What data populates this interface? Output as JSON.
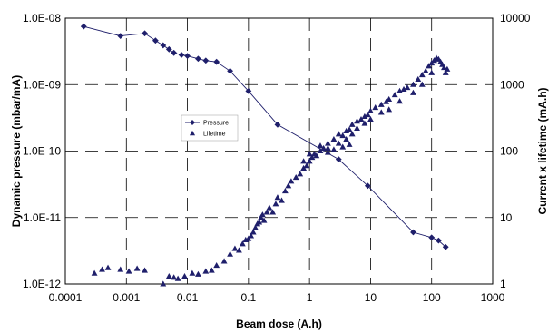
{
  "chart_data": {
    "type": "scatter",
    "xlabel": "Beam dose (A.h)",
    "ylabel_left": "Dynamic pressure (mbar/mA)",
    "ylabel_right": "Current x lifetime (mA.h)",
    "x_scale": "log",
    "y_left_scale": "log",
    "y_right_scale": "log",
    "xlim": [
      0.0001,
      1000
    ],
    "ylim_left": [
      1e-12,
      1e-08
    ],
    "ylim_right": [
      1,
      10000
    ],
    "x_ticks": [
      "0.0001",
      "0.001",
      "0.01",
      "0.1",
      "1",
      "10",
      "100",
      "1000"
    ],
    "y_left_ticks": [
      "1.0E-12",
      "1.0E-11",
      "1.0E-10",
      "1.0E-09",
      "1.0E-08"
    ],
    "y_right_ticks": [
      "1",
      "10",
      "100",
      "1000",
      "10000"
    ],
    "grid": "dashed",
    "legend_position": "left-center",
    "series": [
      {
        "name": "Pressure",
        "axis": "left",
        "marker": "diamond",
        "connected": true,
        "color": "#1f1f6b",
        "points": [
          [
            0.0002,
            7.5e-09
          ],
          [
            0.0008,
            5.4e-09
          ],
          [
            0.002,
            5.9e-09
          ],
          [
            0.003,
            4.6e-09
          ],
          [
            0.004,
            3.9e-09
          ],
          [
            0.005,
            3.4e-09
          ],
          [
            0.006,
            3e-09
          ],
          [
            0.008,
            2.8e-09
          ],
          [
            0.01,
            2.7e-09
          ],
          [
            0.015,
            2.45e-09
          ],
          [
            0.02,
            2.3e-09
          ],
          [
            0.03,
            2.2e-09
          ],
          [
            0.05,
            1.6e-09
          ],
          [
            0.1,
            8e-10
          ],
          [
            0.3,
            2.5e-10
          ],
          [
            3,
            7.5e-11
          ],
          [
            9,
            3e-11
          ],
          [
            50,
            6e-12
          ],
          [
            100,
            5e-12
          ],
          [
            130,
            4.5e-12
          ],
          [
            170,
            3.6e-12
          ]
        ]
      },
      {
        "name": "Lifetime",
        "axis": "right",
        "marker": "triangle",
        "connected": false,
        "color": "#1f1f6b",
        "points": [
          [
            0.0003,
            1.45
          ],
          [
            0.0004,
            1.65
          ],
          [
            0.0005,
            1.75
          ],
          [
            0.0008,
            1.65
          ],
          [
            0.0011,
            1.55
          ],
          [
            0.0015,
            1.7
          ],
          [
            0.002,
            1.6
          ],
          [
            0.004,
            1.0
          ],
          [
            0.005,
            1.3
          ],
          [
            0.006,
            1.25
          ],
          [
            0.007,
            1.2
          ],
          [
            0.009,
            1.3
          ],
          [
            0.012,
            1.45
          ],
          [
            0.015,
            1.4
          ],
          [
            0.02,
            1.55
          ],
          [
            0.025,
            1.6
          ],
          [
            0.03,
            1.9
          ],
          [
            0.04,
            2.2
          ],
          [
            0.05,
            2.8
          ],
          [
            0.06,
            3.4
          ],
          [
            0.07,
            3.2
          ],
          [
            0.08,
            4.0
          ],
          [
            0.09,
            4.6
          ],
          [
            0.1,
            4.8
          ],
          [
            0.11,
            5.3
          ],
          [
            0.12,
            6.0
          ],
          [
            0.13,
            7.0
          ],
          [
            0.14,
            8.0
          ],
          [
            0.15,
            8.5
          ],
          [
            0.16,
            10.0
          ],
          [
            0.17,
            11.0
          ],
          [
            0.18,
            9.0
          ],
          [
            0.2,
            12.0
          ],
          [
            0.22,
            14.0
          ],
          [
            0.25,
            12.0
          ],
          [
            0.28,
            16.0
          ],
          [
            0.3,
            20.0
          ],
          [
            0.35,
            18.0
          ],
          [
            0.4,
            25.0
          ],
          [
            0.45,
            30.0
          ],
          [
            0.5,
            35.0
          ],
          [
            0.6,
            40.0
          ],
          [
            0.7,
            45.0
          ],
          [
            0.8,
            55.0
          ],
          [
            0.9,
            60.0
          ],
          [
            1.0,
            70.0
          ],
          [
            1.1,
            80.0
          ],
          [
            1.2,
            90.0
          ],
          [
            1.3,
            85.0
          ],
          [
            1.5,
            100.0
          ],
          [
            1.7,
            110.0
          ],
          [
            2.0,
            130.0
          ],
          [
            2.5,
            150.0
          ],
          [
            3.0,
            180.0
          ],
          [
            3.5,
            170.0
          ],
          [
            4.0,
            200.0
          ],
          [
            4.5,
            210.0
          ],
          [
            5.0,
            250.0
          ],
          [
            6.0,
            280.0
          ],
          [
            7.0,
            300.0
          ],
          [
            8.0,
            330.0
          ],
          [
            9.0,
            350.0
          ],
          [
            10.0,
            400.0
          ],
          [
            12.0,
            450.0
          ],
          [
            15.0,
            500.0
          ],
          [
            18.0,
            550.0
          ],
          [
            20.0,
            600.0
          ],
          [
            25.0,
            700.0
          ],
          [
            30.0,
            800.0
          ],
          [
            35.0,
            850.0
          ],
          [
            40.0,
            900.0
          ],
          [
            50.0,
            1000.0
          ],
          [
            60.0,
            1200.0
          ],
          [
            70.0,
            1400.0
          ],
          [
            80.0,
            1600.0
          ],
          [
            90.0,
            1900.0
          ],
          [
            100.0,
            2100.0
          ],
          [
            110.0,
            2300.0
          ],
          [
            120.0,
            2500.0
          ],
          [
            130.0,
            2400.0
          ],
          [
            140.0,
            2200.0
          ],
          [
            150.0,
            2000.0
          ],
          [
            160.0,
            1800.0
          ],
          [
            170.0,
            1500.0
          ],
          [
            180.0,
            1700.0
          ],
          [
            0.8,
            70.0
          ],
          [
            1.0,
            90.0
          ],
          [
            1.5,
            120.0
          ],
          [
            2.0,
            110.0
          ],
          [
            3.0,
            130.0
          ],
          [
            4.0,
            150.0
          ],
          [
            5.0,
            180.0
          ],
          [
            6.0,
            220.0
          ],
          [
            8.0,
            260.0
          ],
          [
            10.0,
            300.0
          ],
          [
            15.0,
            380.0
          ],
          [
            20.0,
            420.0
          ],
          [
            30.0,
            560.0
          ],
          [
            50.0,
            750.0
          ],
          [
            70.0,
            1000.0
          ],
          [
            100.0,
            1500.0
          ],
          [
            2.0,
            95.0
          ],
          [
            2.5,
            105.0
          ],
          [
            3.5,
            115.0
          ],
          [
            4.5,
            125.0
          ]
        ]
      }
    ]
  }
}
